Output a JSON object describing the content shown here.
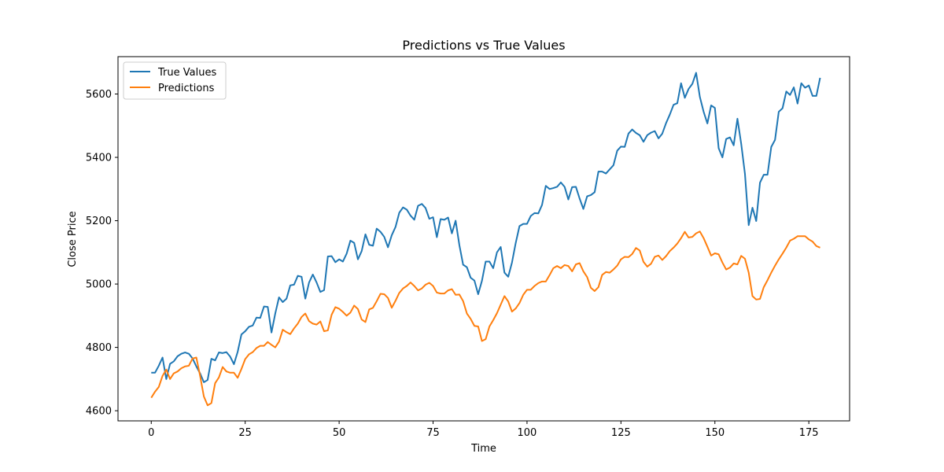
{
  "chart_data": {
    "type": "line",
    "title": "Predictions vs True Values",
    "xlabel": "Time",
    "ylabel": "Close Price",
    "xlim": [
      -8.85,
      185.85
    ],
    "ylim": [
      4568,
      5718
    ],
    "xticks": [
      0,
      25,
      50,
      75,
      100,
      125,
      150,
      175
    ],
    "yticks": [
      4600,
      4800,
      5000,
      5200,
      5400,
      5600
    ],
    "grid": false,
    "legend_position": "upper-left",
    "series": [
      {
        "name": "True Values",
        "color": "#1f77b4",
        "x_start": 0,
        "values": [
          4720,
          4720,
          4742,
          4768,
          4700,
          4748,
          4756,
          4772,
          4780,
          4784,
          4780,
          4765,
          4740,
          4718,
          4690,
          4697,
          4764,
          4759,
          4784,
          4782,
          4785,
          4771,
          4747,
          4786,
          4841,
          4851,
          4865,
          4869,
          4894,
          4893,
          4929,
          4928,
          4847,
          4907,
          4958,
          4943,
          4954,
          4996,
          4998,
          5026,
          5023,
          4954,
          5005,
          5030,
          5005,
          4975,
          4981,
          5087,
          5088,
          5069,
          5078,
          5071,
          5096,
          5137,
          5130,
          5078,
          5104,
          5157,
          5124,
          5121,
          5175,
          5165,
          5149,
          5116,
          5154,
          5180,
          5225,
          5242,
          5235,
          5216,
          5203,
          5247,
          5253,
          5240,
          5206,
          5211,
          5148,
          5205,
          5203,
          5210,
          5160,
          5200,
          5123,
          5061,
          5053,
          5020,
          5011,
          4968,
          5010,
          5071,
          5071,
          5050,
          5100,
          5117,
          5036,
          5023,
          5068,
          5130,
          5183,
          5190,
          5190,
          5215,
          5224,
          5223,
          5250,
          5310,
          5300,
          5303,
          5307,
          5321,
          5307,
          5267,
          5306,
          5307,
          5270,
          5237,
          5277,
          5281,
          5290,
          5355,
          5355,
          5349,
          5362,
          5375,
          5421,
          5434,
          5433,
          5475,
          5488,
          5477,
          5470,
          5449,
          5470,
          5478,
          5483,
          5460,
          5475,
          5508,
          5535,
          5566,
          5571,
          5634,
          5588,
          5616,
          5632,
          5667,
          5591,
          5544,
          5507,
          5564,
          5556,
          5429,
          5400,
          5458,
          5463,
          5438,
          5522,
          5443,
          5348,
          5186,
          5241,
          5199,
          5320,
          5345,
          5345,
          5433,
          5455,
          5544,
          5555,
          5608,
          5597,
          5621,
          5570,
          5634,
          5620,
          5627,
          5594,
          5594,
          5651
        ]
      },
      {
        "name": "Predictions",
        "color": "#ff7f0e",
        "x_start": 0,
        "values": [
          4641,
          4660,
          4675,
          4710,
          4730,
          4700,
          4718,
          4724,
          4734,
          4740,
          4742,
          4765,
          4768,
          4710,
          4645,
          4617,
          4624,
          4687,
          4705,
          4738,
          4724,
          4720,
          4720,
          4704,
          4732,
          4763,
          4778,
          4785,
          4798,
          4805,
          4805,
          4817,
          4808,
          4800,
          4818,
          4856,
          4848,
          4842,
          4860,
          4875,
          4896,
          4907,
          4883,
          4875,
          4872,
          4882,
          4851,
          4854,
          4903,
          4927,
          4922,
          4912,
          4900,
          4910,
          4932,
          4921,
          4888,
          4880,
          4920,
          4925,
          4946,
          4969,
          4968,
          4956,
          4925,
          4947,
          4972,
          4986,
          4994,
          5005,
          4994,
          4980,
          4986,
          4998,
          5004,
          4994,
          4973,
          4970,
          4970,
          4980,
          4984,
          4966,
          4967,
          4946,
          4907,
          4890,
          4868,
          4866,
          4820,
          4826,
          4866,
          4886,
          4908,
          4935,
          4962,
          4945,
          4913,
          4923,
          4940,
          4966,
          4982,
          4982,
          4994,
          5003,
          5008,
          5008,
          5028,
          5050,
          5057,
          5050,
          5060,
          5057,
          5040,
          5062,
          5066,
          5040,
          5022,
          4988,
          4978,
          4990,
          5029,
          5038,
          5036,
          5046,
          5058,
          5078,
          5086,
          5085,
          5095,
          5114,
          5106,
          5070,
          5055,
          5064,
          5086,
          5090,
          5076,
          5088,
          5104,
          5115,
          5128,
          5145,
          5165,
          5147,
          5149,
          5160,
          5166,
          5145,
          5118,
          5090,
          5097,
          5094,
          5068,
          5046,
          5052,
          5065,
          5062,
          5089,
          5080,
          5036,
          4962,
          4951,
          4953,
          4990,
          5012,
          5036,
          5058,
          5078,
          5096,
          5115,
          5137,
          5143,
          5151,
          5151,
          5151,
          5141,
          5134,
          5120,
          5115
        ]
      }
    ]
  }
}
